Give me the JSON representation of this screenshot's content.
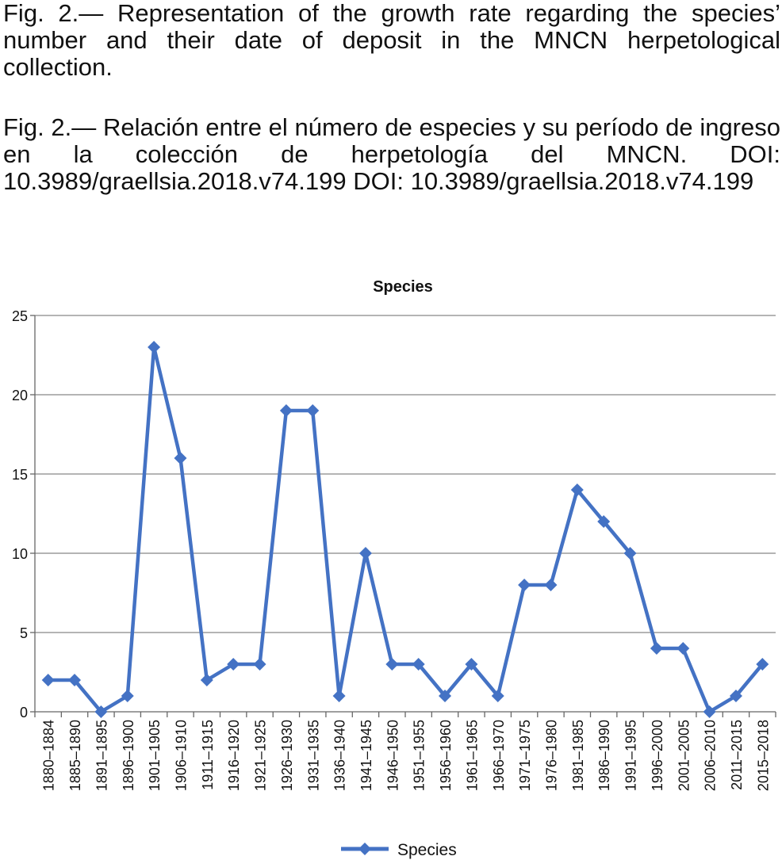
{
  "caption_en": "Fig. 2.— Representation of the growth rate regarding the species’ number and their date of deposit in the MNCN herpetological collection.",
  "caption_es": "Fig. 2.— Relación entre el número de especies y su período de ingreso en la colección de herpetología del MNCN. DOI: 10.3989/graellsia.2018.v74.199 DOI: 10.3989/graellsia.2018.v74.199",
  "colors": {
    "series": "#4472C4",
    "grid": "#888888",
    "axis": "#666666"
  },
  "chart_data": {
    "type": "line",
    "title": "Species",
    "xlabel": "",
    "ylabel": "",
    "ylim": [
      0,
      25
    ],
    "yticks": [
      0,
      5,
      10,
      15,
      20,
      25
    ],
    "grid": true,
    "legend_position": "bottom",
    "categories": [
      "1880–1884",
      "1885–1890",
      "1891–1895",
      "1896–1900",
      "1901–1905",
      "1906–1910",
      "1911–1915",
      "1916–1920",
      "1921–1925",
      "1926–1930",
      "1931–1935",
      "1936–1940",
      "1941–1945",
      "1946–1950",
      "1951–1955",
      "1956–1960",
      "1961–1965",
      "1966–1970",
      "1971–1975",
      "1976–1980",
      "1981–1985",
      "1986–1990",
      "1991–1995",
      "1996–2000",
      "2001–2005",
      "2006–2010",
      "2011–2015",
      "2015–2018"
    ],
    "series": [
      {
        "name": "Species",
        "marker": "diamond",
        "values": [
          2,
          2,
          0,
          1,
          23,
          16,
          2,
          3,
          3,
          19,
          19,
          1,
          10,
          3,
          3,
          1,
          3,
          1,
          8,
          8,
          14,
          12,
          10,
          4,
          4,
          0,
          1,
          3
        ]
      }
    ]
  }
}
